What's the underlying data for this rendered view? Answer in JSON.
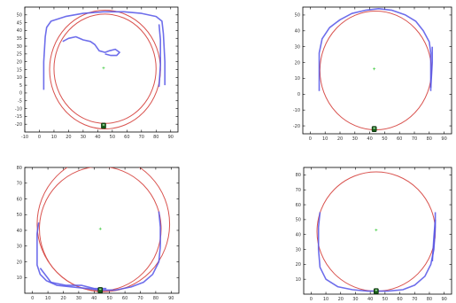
{
  "colors": {
    "circle": "#d9534f",
    "track": "#5555e8",
    "centre": "#44cc44",
    "robot": "#1a5f1a"
  },
  "chart_data": [
    {
      "type": "line",
      "xlim": [
        -10,
        95
      ],
      "ylim": [
        -25,
        55
      ],
      "x_ticks": [
        -10,
        0,
        10,
        20,
        30,
        40,
        50,
        60,
        70,
        80,
        90
      ],
      "y_ticks": [
        -20,
        -15,
        -10,
        -5,
        0,
        5,
        10,
        15,
        20,
        25,
        30,
        35,
        40,
        45,
        50
      ],
      "x_tick_labels": [
        "-10",
        "0",
        "10",
        "20",
        "30",
        "40",
        "50",
        "60",
        "70",
        "80",
        "90"
      ],
      "y_tick_labels": [
        "-20",
        "-15",
        "-10",
        "-5",
        "0",
        "5",
        "10",
        "15",
        "20",
        "25",
        "30",
        "35",
        "40",
        "45",
        "50"
      ],
      "circles": [
        {
          "cx": 45,
          "cy": 15,
          "r": 38
        },
        {
          "cx": 45,
          "cy": 15.5,
          "r": 35
        }
      ],
      "centre": [
        44,
        16
      ],
      "robot": [
        44,
        -21
      ],
      "series": [
        {
          "points": [
            [
              3,
              2
            ],
            [
              3,
              20
            ],
            [
              4,
              36
            ],
            [
              5,
              42
            ],
            [
              8,
              46
            ],
            [
              18,
              49
            ],
            [
              30,
              51
            ],
            [
              44,
              52
            ],
            [
              58,
              52
            ],
            [
              70,
              51
            ],
            [
              80,
              49
            ],
            [
              84,
              46
            ],
            [
              85,
              38
            ],
            [
              86,
              20
            ],
            [
              86,
              5
            ]
          ]
        },
        {
          "points": [
            [
              82,
              4
            ],
            [
              83,
              18
            ],
            [
              83,
              34
            ],
            [
              82,
              44
            ]
          ]
        },
        {
          "points": [
            [
              16,
              33
            ],
            [
              20,
              35
            ],
            [
              25,
              36
            ],
            [
              30,
              34
            ],
            [
              35,
              33
            ],
            [
              38,
              31
            ],
            [
              41,
              27
            ],
            [
              45,
              26
            ],
            [
              48,
              27
            ],
            [
              52,
              28
            ],
            [
              55,
              26
            ],
            [
              53,
              24
            ],
            [
              49,
              24
            ],
            [
              45,
              25
            ]
          ]
        }
      ]
    },
    {
      "type": "line",
      "xlim": [
        -5,
        95
      ],
      "ylim": [
        -25,
        55
      ],
      "x_ticks": [
        0,
        10,
        20,
        30,
        40,
        50,
        60,
        70,
        80,
        90
      ],
      "y_ticks": [
        -20,
        -10,
        0,
        10,
        20,
        30,
        40,
        50
      ],
      "x_tick_labels": [
        "0",
        "10",
        "20",
        "30",
        "40",
        "50",
        "60",
        "70",
        "80",
        "90"
      ],
      "y_tick_labels": [
        "-20",
        "-10",
        "0",
        "10",
        "20",
        "30",
        "40",
        "50"
      ],
      "circles": [
        {
          "cx": 44,
          "cy": 15,
          "r": 37.5
        }
      ],
      "centre": [
        43,
        16
      ],
      "robot": [
        43,
        -22
      ],
      "series": [
        {
          "points": [
            [
              6,
              2
            ],
            [
              6,
              26
            ],
            [
              8,
              35
            ],
            [
              13,
              42
            ],
            [
              20,
              47
            ],
            [
              28,
              51
            ],
            [
              37,
              53
            ],
            [
              46,
              54
            ],
            [
              55,
              53
            ],
            [
              64,
              50
            ],
            [
              71,
              46
            ],
            [
              76,
              40
            ],
            [
              80,
              33
            ],
            [
              81,
              26
            ],
            [
              81,
              2
            ]
          ]
        },
        {
          "points": [
            [
              81,
              4
            ],
            [
              82,
              20
            ],
            [
              82,
              30
            ]
          ]
        }
      ]
    },
    {
      "type": "line",
      "xlim": [
        -5,
        95
      ],
      "ylim": [
        0,
        80
      ],
      "x_ticks": [
        0,
        10,
        20,
        30,
        40,
        50,
        60,
        70,
        80,
        90
      ],
      "y_ticks": [
        10,
        20,
        30,
        40,
        50,
        60,
        70,
        80
      ],
      "x_tick_labels": [
        "0",
        "10",
        "20",
        "30",
        "40",
        "50",
        "60",
        "70",
        "80",
        "90"
      ],
      "y_tick_labels": [
        "10",
        "20",
        "30",
        "40",
        "50",
        "60",
        "70",
        "80"
      ],
      "circles": [
        {
          "cx": 44,
          "cy": 41,
          "r": 39.5
        },
        {
          "cx": 46,
          "cy": 44,
          "r": 43
        }
      ],
      "centre": [
        44,
        41
      ],
      "robot": [
        44,
        2
      ],
      "series": [
        {
          "points": [
            [
              4,
              45
            ],
            [
              3,
              38
            ],
            [
              3,
              28
            ],
            [
              3,
              18
            ],
            [
              5,
              12
            ],
            [
              9,
              8
            ],
            [
              16,
              5
            ],
            [
              26,
              4
            ],
            [
              36,
              3
            ],
            [
              44,
              2
            ],
            [
              54,
              2
            ],
            [
              64,
              4
            ],
            [
              72,
              7
            ],
            [
              78,
              12
            ],
            [
              82,
              20
            ],
            [
              83,
              30
            ],
            [
              83,
              42
            ],
            [
              82,
              52
            ]
          ]
        },
        {
          "points": [
            [
              5,
              16
            ],
            [
              12,
              7
            ],
            [
              22,
              5
            ],
            [
              32,
              5
            ],
            [
              40,
              3
            ],
            [
              48,
              3
            ]
          ]
        }
      ]
    },
    {
      "type": "line",
      "xlim": [
        -5,
        95
      ],
      "ylim": [
        0,
        85
      ],
      "x_ticks": [
        0,
        10,
        20,
        30,
        40,
        50,
        60,
        70,
        80,
        90
      ],
      "y_ticks": [
        10,
        20,
        30,
        40,
        50,
        60,
        70,
        80
      ],
      "x_tick_labels": [
        "0",
        "10",
        "20",
        "30",
        "40",
        "50",
        "60",
        "70",
        "80",
        "90"
      ],
      "y_tick_labels": [
        "10",
        "20",
        "30",
        "40",
        "50",
        "60",
        "70",
        "80"
      ],
      "circles": [
        {
          "cx": 44,
          "cy": 42,
          "r": 40
        }
      ],
      "centre": [
        44,
        43
      ],
      "robot": [
        44,
        2
      ],
      "series": [
        {
          "points": [
            [
              6,
              55
            ],
            [
              5,
              45
            ],
            [
              5,
              30
            ],
            [
              6,
              18
            ],
            [
              10,
              10
            ],
            [
              18,
              5
            ],
            [
              28,
              3
            ],
            [
              38,
              2
            ],
            [
              44,
              2
            ],
            [
              52,
              2
            ],
            [
              62,
              3
            ],
            [
              70,
              6
            ],
            [
              77,
              12
            ],
            [
              81,
              20
            ],
            [
              83,
              30
            ],
            [
              84,
              45
            ],
            [
              84,
              55
            ]
          ]
        },
        {
          "points": [
            [
              82,
              22
            ],
            [
              83,
              38
            ],
            [
              84,
              50
            ]
          ]
        }
      ]
    }
  ]
}
